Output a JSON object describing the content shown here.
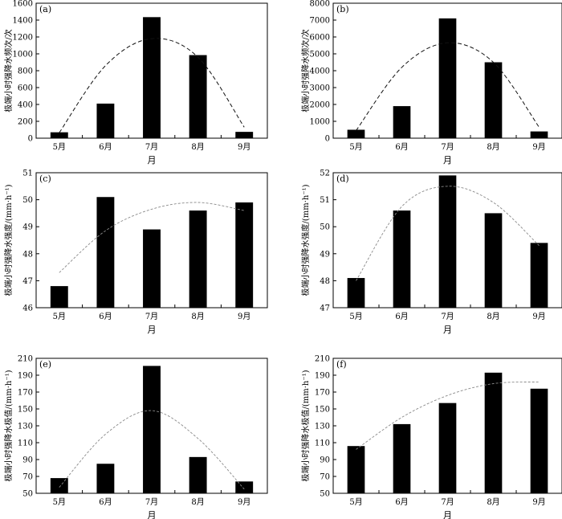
{
  "chart_data": [
    {
      "type": "bar",
      "panel_label": "(a)",
      "categories": [
        "5月",
        "6月",
        "7月",
        "8月",
        "9月"
      ],
      "values": [
        70,
        410,
        1435,
        985,
        75
      ],
      "trend": [
        65,
        860,
        1180,
        960,
        130
      ],
      "trend_style": "dashed-black",
      "xlabel": "月",
      "ylabel": "极端小时强降水频次/次",
      "ylim": [
        0,
        1600
      ],
      "yticks": [
        0,
        200,
        400,
        600,
        800,
        1000,
        1200,
        1400,
        1600
      ]
    },
    {
      "type": "bar",
      "panel_label": "(b)",
      "categories": [
        "5月",
        "6月",
        "7月",
        "8月",
        "9月"
      ],
      "values": [
        500,
        1900,
        7100,
        4500,
        400
      ],
      "trend": [
        450,
        4200,
        5650,
        4500,
        650
      ],
      "trend_style": "dashed-black",
      "xlabel": "月",
      "ylabel": "极端小时强降水频次/次",
      "ylim": [
        0,
        8000
      ],
      "yticks": [
        0,
        1000,
        2000,
        3000,
        4000,
        5000,
        6000,
        7000,
        8000
      ]
    },
    {
      "type": "bar",
      "panel_label": "(c)",
      "categories": [
        "5月",
        "6月",
        "7月",
        "8月",
        "9月"
      ],
      "values": [
        46.8,
        50.1,
        48.9,
        49.6,
        49.9
      ],
      "trend": [
        47.3,
        48.85,
        49.65,
        49.9,
        49.6
      ],
      "trend_style": "dashed-grey",
      "xlabel": "月",
      "ylabel": "极端小时强降水强度/(mm·h⁻¹)",
      "ylim": [
        46,
        51
      ],
      "yticks": [
        46,
        47,
        48,
        49,
        50,
        51
      ]
    },
    {
      "type": "bar",
      "panel_label": "(d)",
      "categories": [
        "5月",
        "6月",
        "7月",
        "8月",
        "9月"
      ],
      "values": [
        48.1,
        50.6,
        51.9,
        50.5,
        49.4
      ],
      "trend": [
        48.0,
        50.75,
        51.5,
        50.9,
        49.3
      ],
      "trend_style": "dashed-grey",
      "xlabel": "月",
      "ylabel": "极端小时强降水强度/(mm·h⁻¹)",
      "ylim": [
        47,
        52
      ],
      "yticks": [
        47,
        48,
        49,
        50,
        51,
        52
      ]
    },
    {
      "type": "bar",
      "panel_label": "(e)",
      "categories": [
        "5月",
        "6月",
        "7月",
        "8月",
        "9月"
      ],
      "values": [
        68,
        85,
        201,
        93,
        64
      ],
      "trend": [
        57,
        120,
        148,
        115,
        55
      ],
      "trend_style": "dashed-grey",
      "xlabel": "月",
      "ylabel": "极端小时强降水极值/(mm·h⁻¹)",
      "ylim": [
        50,
        210
      ],
      "yticks": [
        50,
        70,
        90,
        110,
        130,
        150,
        170,
        190,
        210
      ]
    },
    {
      "type": "bar",
      "panel_label": "(f)",
      "categories": [
        "5月",
        "6月",
        "7月",
        "8月",
        "9月"
      ],
      "values": [
        106,
        132,
        157,
        193,
        174
      ],
      "trend": [
        102,
        140,
        166,
        180,
        182
      ],
      "trend_style": "dashed-grey",
      "xlabel": "月",
      "ylabel": "极端小时强降水极值/(mm·h⁻¹)",
      "ylim": [
        50,
        210
      ],
      "yticks": [
        50,
        70,
        90,
        110,
        130,
        150,
        170,
        190,
        210
      ]
    }
  ]
}
